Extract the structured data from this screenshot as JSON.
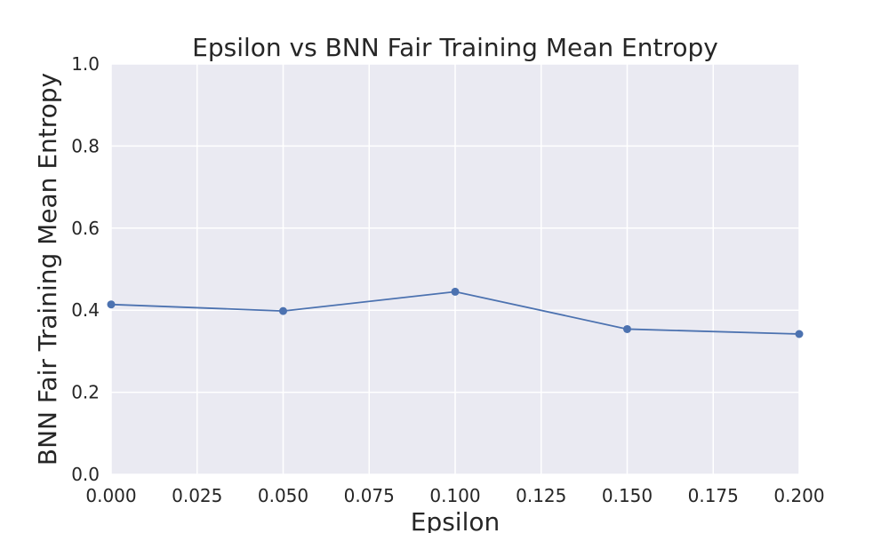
{
  "chart_data": {
    "type": "line",
    "title": "Epsilon vs BNN Fair Training Mean Entropy",
    "xlabel": "Epsilon",
    "ylabel": "BNN Fair Training Mean Entropy",
    "xlim": [
      0.0,
      0.2
    ],
    "ylim": [
      0.0,
      1.0
    ],
    "grid": true,
    "x_ticks": [
      "0.000",
      "0.025",
      "0.050",
      "0.075",
      "0.100",
      "0.125",
      "0.150",
      "0.175",
      "0.200"
    ],
    "y_ticks": [
      "0.0",
      "0.2",
      "0.4",
      "0.6",
      "0.8",
      "1.0"
    ],
    "series": [
      {
        "x": [
          0.0,
          0.05,
          0.1,
          0.15,
          0.2
        ],
        "values": [
          0.414,
          0.398,
          0.445,
          0.354,
          0.342
        ],
        "color": "#4c72b0",
        "marker": "circle"
      }
    ],
    "colors": {
      "plot_background": "#eaeaf2",
      "grid": "#ffffff",
      "text": "#262626"
    }
  }
}
